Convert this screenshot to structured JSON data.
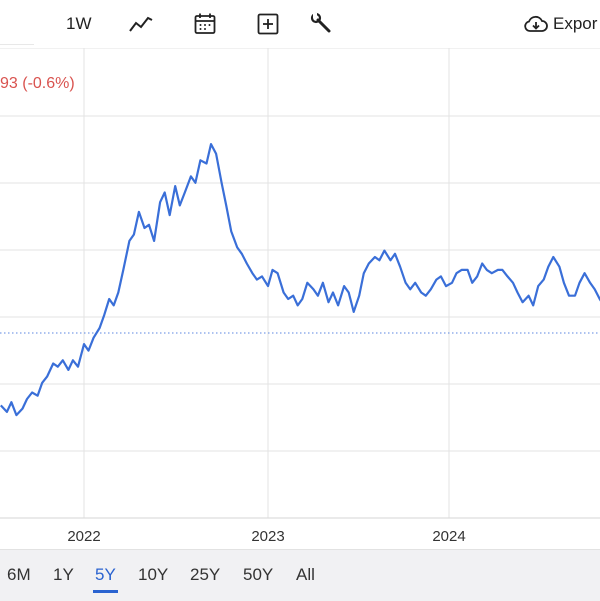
{
  "toolbar": {
    "period_label": "1W",
    "line_icon": "line-chart-icon",
    "calendar_icon": "calendar-icon",
    "compare_icon": "plus-square-icon",
    "settings_icon": "wrench-icon",
    "export_icon": "cloud-download-icon",
    "export_label": "Expor"
  },
  "change_text": "93 (-0.6%)",
  "colors": {
    "line": "#3a6fd8",
    "reference_line": "#5b86e0",
    "grid": "#e3e3e3",
    "negative": "#d9534f",
    "active_range": "#2a63d0",
    "range_bar_bg": "#f1f1f3"
  },
  "range_buttons": {
    "b6m": "6M",
    "b1y": "1Y",
    "b5y": "5Y",
    "b10y": "10Y",
    "b25y": "25Y",
    "b50y": "50Y",
    "ball": "All",
    "active": "5Y"
  },
  "chart_data": {
    "type": "line",
    "title": "",
    "xlabel": "",
    "ylabel": "",
    "x_ticks": [
      "2022",
      "2023",
      "2024"
    ],
    "grid": true,
    "legend": "none",
    "reference_line": true,
    "series": [
      {
        "x": [
          "2021-07-20",
          "2021-08-01",
          "2021-08-10",
          "2021-08-20",
          "2021-09-01",
          "2021-09-10",
          "2021-09-20",
          "2021-10-01",
          "2021-10-10",
          "2021-10-20",
          "2021-11-01",
          "2021-11-10",
          "2021-11-20",
          "2021-12-01",
          "2021-12-10",
          "2021-12-20",
          "2022-01-01",
          "2022-01-10",
          "2022-01-20",
          "2022-02-01",
          "2022-02-10",
          "2022-02-20",
          "2022-03-01",
          "2022-03-10",
          "2022-03-20",
          "2022-04-01",
          "2022-04-10",
          "2022-04-20",
          "2022-05-01",
          "2022-05-10",
          "2022-05-20",
          "2022-06-01",
          "2022-06-10",
          "2022-06-20",
          "2022-07-01",
          "2022-07-10",
          "2022-07-20",
          "2022-08-01",
          "2022-08-10",
          "2022-08-20",
          "2022-09-01",
          "2022-09-10",
          "2022-09-20",
          "2022-10-01",
          "2022-10-10",
          "2022-10-20",
          "2022-11-01",
          "2022-11-10",
          "2022-11-20",
          "2022-12-01",
          "2022-12-10",
          "2022-12-20",
          "2023-01-01",
          "2023-01-10",
          "2023-01-20",
          "2023-02-01",
          "2023-02-10",
          "2023-02-20",
          "2023-03-01",
          "2023-03-10",
          "2023-03-20",
          "2023-04-01",
          "2023-04-10",
          "2023-04-20",
          "2023-05-01",
          "2023-05-10",
          "2023-05-20",
          "2023-06-01",
          "2023-06-10",
          "2023-06-20",
          "2023-07-01",
          "2023-07-10",
          "2023-07-20",
          "2023-08-01",
          "2023-08-10",
          "2023-08-20",
          "2023-09-01",
          "2023-09-10",
          "2023-09-20",
          "2023-10-01",
          "2023-10-10",
          "2023-10-20",
          "2023-11-01",
          "2023-11-10",
          "2023-11-20",
          "2023-12-01",
          "2023-12-10",
          "2023-12-20",
          "2024-01-01",
          "2024-01-10",
          "2024-01-20",
          "2024-02-01",
          "2024-02-10",
          "2024-02-20",
          "2024-03-01",
          "2024-03-10",
          "2024-03-20",
          "2024-04-01",
          "2024-04-10",
          "2024-04-20",
          "2024-05-01",
          "2024-05-10",
          "2024-05-20",
          "2024-06-01",
          "2024-06-10",
          "2024-06-20",
          "2024-07-01",
          "2024-07-10",
          "2024-07-20",
          "2024-08-01",
          "2024-08-10",
          "2024-08-20",
          "2024-09-01",
          "2024-09-10",
          "2024-09-20",
          "2024-10-01",
          "2024-10-10",
          "2024-10-20",
          "2024-11-01",
          "2024-11-10"
        ],
        "y": [
          62,
          60,
          63,
          59,
          61,
          64,
          66,
          65,
          69,
          71,
          75,
          74,
          76,
          73,
          76,
          74,
          81,
          79,
          83,
          86,
          90,
          95,
          93,
          97,
          104,
          113,
          115,
          122,
          117,
          118,
          113,
          125,
          128,
          121,
          130,
          124,
          128,
          133,
          131,
          138,
          137,
          143,
          140,
          131,
          124,
          116,
          111,
          109,
          106,
          103,
          101,
          102,
          99,
          104,
          103,
          97,
          95,
          96,
          93,
          95,
          100,
          98,
          96,
          100,
          94,
          97,
          93,
          99,
          97,
          91,
          96,
          103,
          106,
          108,
          107,
          110,
          107,
          109,
          105,
          100,
          98,
          100,
          97,
          96,
          98,
          101,
          102,
          99,
          100,
          103,
          104,
          104,
          100,
          102,
          106,
          104,
          103,
          104,
          104,
          102,
          100,
          97,
          94,
          96,
          93,
          99,
          101,
          105,
          108,
          105,
          100,
          96,
          96,
          100,
          103,
          100,
          98,
          95,
          92,
          98
        ]
      }
    ]
  }
}
